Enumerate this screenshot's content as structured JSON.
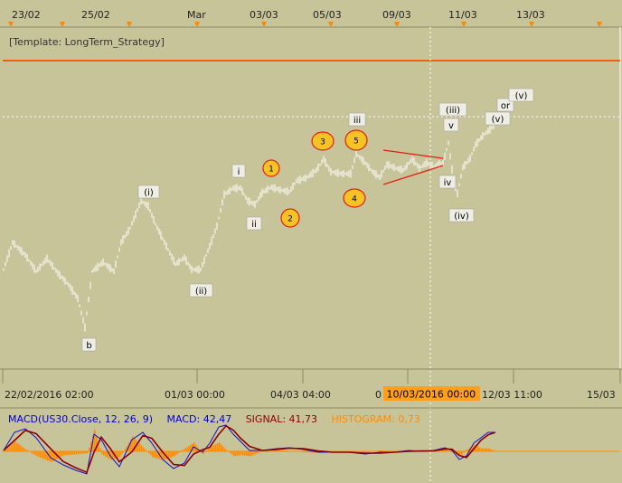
{
  "top_axis": {
    "labels": [
      "23/02",
      "25/02",
      "Mar",
      "03/03",
      "05/03",
      "09/03",
      "11/03",
      "13/03"
    ]
  },
  "template_label": "[Template: LongTerm_Strategy]",
  "bottom_axis": {
    "labels": [
      "22/02/2016 02:00",
      "01/03 00:00",
      "04/03 04:00",
      "0",
      "12/03 11:00",
      "15/03"
    ],
    "highlight": "10/03/2016 00:00"
  },
  "wave_labels": {
    "b": "b",
    "i_paren": "(i)",
    "ii_paren": "(ii)",
    "i": "i",
    "ii": "ii",
    "iii": "iii",
    "iii_paren": "(iii)",
    "v": "v",
    "iv": "iv",
    "iv_paren": "(iv)",
    "v_paren": "(v)",
    "or": "or",
    "v_paren_alt": "(v)"
  },
  "circle_labels": [
    "1",
    "2",
    "3",
    "4",
    "5"
  ],
  "macd": {
    "title": "MACD(US30.Close, 12, 26, 9)",
    "macd_label": "MACD: 42,47",
    "signal_label": "SIGNAL: 41,73",
    "histogram_label": "HISTOGRAM: 0,73"
  },
  "colors": {
    "background": "#c8c49a",
    "price": "#ffffff",
    "orange_line": "#f06010",
    "circle_fill": "#f6c324",
    "circle_stroke": "#e02010",
    "macd_line": "#0000cc",
    "signal_line": "#8b0000",
    "histogram": "#ff8c00",
    "highlight_bg": "#ff9f1c"
  }
}
